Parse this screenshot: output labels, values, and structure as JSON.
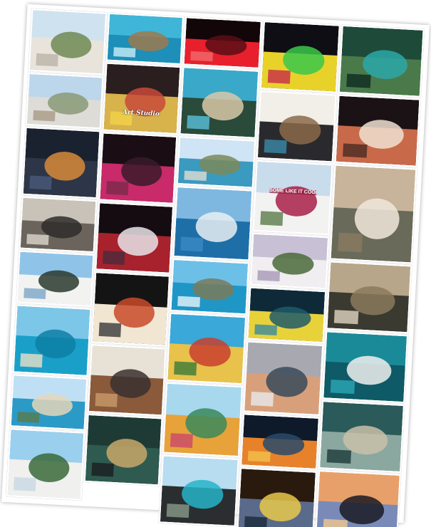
{
  "collage": {
    "background": "#ffffff",
    "photos": [
      {
        "subject": "white-villas-street",
        "colors": [
          "#cfe2f0",
          "#e8e4dc",
          "#6e8a54",
          "#b9b3a8"
        ]
      },
      {
        "subject": "hillside-town",
        "colors": [
          "#bcd6ec",
          "#dedcd6",
          "#8a9a78",
          "#a89a86"
        ]
      },
      {
        "subject": "night-street",
        "colors": [
          "#1a2230",
          "#2c3648",
          "#d88a3a",
          "#4a5a7a"
        ]
      },
      {
        "subject": "balcony-railing",
        "colors": [
          "#c8c2b8",
          "#6a645c",
          "#2e2c2a",
          "#dcd6cc"
        ]
      },
      {
        "subject": "white-hotel",
        "colors": [
          "#8fc4e8",
          "#f2f2f0",
          "#2a3a2e",
          "#7aa6c8"
        ]
      },
      {
        "subject": "turquoise-bay-pontoons",
        "colors": [
          "#7cc6e8",
          "#1aa0c8",
          "#0e7fa6",
          "#e8e0c8"
        ]
      },
      {
        "subject": "sandy-beach",
        "colors": [
          "#bfe0f4",
          "#2b9ac6",
          "#e4d6b8",
          "#5a7a4a"
        ]
      },
      {
        "subject": "palm-hotel",
        "colors": [
          "#9acfee",
          "#f0f0ee",
          "#3a6a3a",
          "#c8d8e4"
        ]
      },
      {
        "subject": "rocky-coast",
        "colors": [
          "#3fb6d8",
          "#1d8fb8",
          "#9c7a4e",
          "#c8ecf8"
        ]
      },
      {
        "subject": "art-studio",
        "colors": [
          "#2a1e1e",
          "#d8b24a",
          "#c84a3a",
          "#f2d24a"
        ],
        "sign": "Art Studio",
        "sign_style": "script"
      },
      {
        "subject": "concert-crowd",
        "colors": [
          "#1a0e14",
          "#c82a6a",
          "#3a1a2a",
          "#7a2a4a"
        ]
      },
      {
        "subject": "bar-screens",
        "colors": [
          "#140c10",
          "#a8222e",
          "#e8e4e8",
          "#4a2a3a"
        ]
      },
      {
        "subject": "pizza-sign",
        "colors": [
          "#141414",
          "#f0e6d2",
          "#c84a2a",
          "#3a3a3a"
        ]
      },
      {
        "subject": "bar-interior",
        "colors": [
          "#e8e2d6",
          "#8a5a3a",
          "#3a3030",
          "#c89a6a"
        ]
      },
      {
        "subject": "classic-car",
        "colors": [
          "#1e3a34",
          "#2e5a50",
          "#c8a86a",
          "#1a1e1e"
        ]
      },
      {
        "subject": "market-night",
        "colors": [
          "#1a2030",
          "#d89a4a",
          "#7a4a3a",
          "#e8d0a0"
        ]
      },
      {
        "subject": "neon-heart",
        "colors": [
          "#120608",
          "#e8202e",
          "#5a0e14",
          "#f06a6a"
        ]
      },
      {
        "subject": "beach-swimmers",
        "colors": [
          "#3aa8c8",
          "#2a4a3a",
          "#d8c8a8",
          "#5ac0dc"
        ]
      },
      {
        "subject": "coastal-village",
        "colors": [
          "#cfe4f4",
          "#3a9ac0",
          "#7a8a5a",
          "#e0dcd2"
        ]
      },
      {
        "subject": "boat-at-sea",
        "colors": [
          "#7eb8e0",
          "#1e6fa8",
          "#e8eef2",
          "#3a8ac4"
        ]
      },
      {
        "subject": "lighthouse-shore",
        "colors": [
          "#6cc0e8",
          "#1f97c6",
          "#7a7a5a",
          "#e8f4fa"
        ]
      },
      {
        "subject": "signpost",
        "colors": [
          "#3aa8d8",
          "#e8c24a",
          "#c8402e",
          "#3a7a3a"
        ]
      },
      {
        "subject": "signpost-palms",
        "colors": [
          "#a8d8ee",
          "#e8a23a",
          "#3a8a5a",
          "#c84a6a"
        ]
      },
      {
        "subject": "buggy-bin",
        "colors": [
          "#b8dcf0",
          "#2a2e30",
          "#26b4c8",
          "#8a9a8a"
        ]
      },
      {
        "subject": "neon-arcade",
        "colors": [
          "#0e0e14",
          "#e8d22a",
          "#3ac84a",
          "#c82a4a"
        ]
      },
      {
        "subject": "shop-front",
        "colors": [
          "#f2efe8",
          "#2a2a2e",
          "#8a6a4a",
          "#3a8aa8"
        ]
      },
      {
        "subject": "billboard-hotel",
        "colors": [
          "#c8dcec",
          "#f2f2f0",
          "#a8204a",
          "#5a7a4a"
        ],
        "sign": "SOME LIKE IT COOL",
        "sign_style": "billboard"
      },
      {
        "subject": "ferris-wheel",
        "colors": [
          "#c8c0d4",
          "#f0eef0",
          "#4a6a3a",
          "#a898b8"
        ]
      },
      {
        "subject": "aquarium-yellow-fish",
        "colors": [
          "#0e2a38",
          "#e8d23a",
          "#1e5a6a",
          "#3a8aa0"
        ]
      },
      {
        "subject": "diver-statue",
        "colors": [
          "#a8a8b0",
          "#d8a07a",
          "#3a4a5a",
          "#e8e8ee"
        ]
      },
      {
        "subject": "goldfish",
        "colors": [
          "#0e1a2a",
          "#e8822a",
          "#2a4a6a",
          "#f0c04a"
        ]
      },
      {
        "subject": "striped-fish",
        "colors": [
          "#2a1a0e",
          "#5a6a8a",
          "#e8c84a",
          "#1a2a3a"
        ]
      },
      {
        "subject": "sea-turtle",
        "colors": [
          "#1e4a3a",
          "#4a7a4a",
          "#2aa8a8",
          "#0e2a22"
        ]
      },
      {
        "subject": "lionfish",
        "colors": [
          "#1a1214",
          "#c86a4a",
          "#f0e0d0",
          "#4a2a22"
        ]
      },
      {
        "subject": "monkeys",
        "colors": [
          "#c8b49a",
          "#6a6a5a",
          "#f0e8dc",
          "#8a7a62"
        ]
      },
      {
        "subject": "crocodile",
        "colors": [
          "#b8a68a",
          "#3a3a30",
          "#8a7a5a",
          "#e0d4c0"
        ]
      },
      {
        "subject": "penguin-pool",
        "colors": [
          "#1a8a98",
          "#0e5a66",
          "#f0f0ee",
          "#2aa8b4"
        ]
      },
      {
        "subject": "seal-pool",
        "colors": [
          "#2a5a5a",
          "#8aa8a0",
          "#c8c0a8",
          "#1a3a3a"
        ]
      },
      {
        "subject": "sunset-palms",
        "colors": [
          "#e8a06a",
          "#7a8ab8",
          "#1a1a22",
          "#f0c890"
        ]
      }
    ]
  }
}
